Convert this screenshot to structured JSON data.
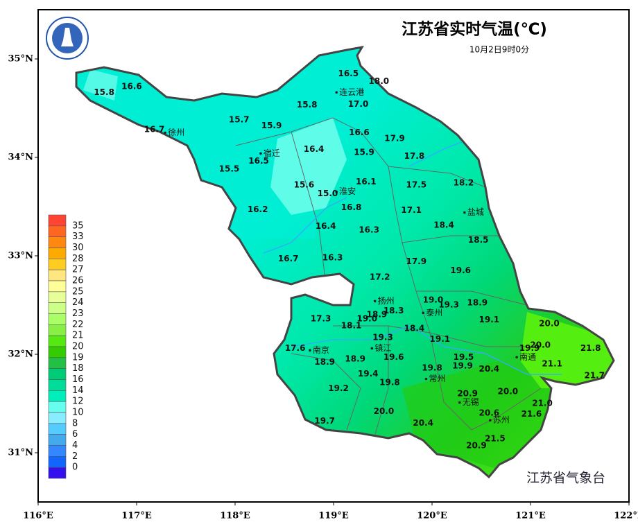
{
  "map": {
    "title": "江苏省实时气温(℃)",
    "subtitle": "10月2日9时0分",
    "footer": "江苏省气象台",
    "xlim": [
      116,
      122
    ],
    "ylim": [
      30.5,
      35.5
    ],
    "xticks": [
      {
        "value": 116,
        "label": "116°E"
      },
      {
        "value": 117,
        "label": "117°E"
      },
      {
        "value": 118,
        "label": "118°E"
      },
      {
        "value": 119,
        "label": "119°E"
      },
      {
        "value": 120,
        "label": "120°E"
      },
      {
        "value": 121,
        "label": "121°E"
      },
      {
        "value": 122,
        "label": "122°E"
      }
    ],
    "yticks": [
      {
        "value": 31,
        "label": "31°N"
      },
      {
        "value": 32,
        "label": "32°N"
      },
      {
        "value": 33,
        "label": "33°N"
      },
      {
        "value": 34,
        "label": "34°N"
      },
      {
        "value": 35,
        "label": "35°N"
      }
    ],
    "legend": {
      "levels": [
        35,
        33,
        30,
        28,
        27,
        26,
        25,
        24,
        23,
        22,
        21,
        20,
        19,
        18,
        16,
        14,
        12,
        10,
        8,
        6,
        4,
        2,
        0
      ],
      "colors": [
        "#ff4433",
        "#ff6622",
        "#ff8811",
        "#ffaa00",
        "#ffcc22",
        "#ffe680",
        "#ffff99",
        "#e6ff99",
        "#ccff88",
        "#aaff66",
        "#88f044",
        "#55e811",
        "#33cc00",
        "#22c044",
        "#00cc77",
        "#00dd99",
        "#00eebb",
        "#66ffee",
        "#88eeff",
        "#55ccff",
        "#44aaee",
        "#3388ff",
        "#1166ff",
        "#3311ee"
      ]
    },
    "cities": [
      {
        "name": "连云港",
        "lon": 119.03,
        "lat": 34.66
      },
      {
        "name": "徐州",
        "lon": 117.29,
        "lat": 34.25
      },
      {
        "name": "宿迁",
        "lon": 118.26,
        "lat": 34.04
      },
      {
        "name": "淮安",
        "lon": 119.03,
        "lat": 33.65
      },
      {
        "name": "盐城",
        "lon": 120.33,
        "lat": 33.44
      },
      {
        "name": "扬州",
        "lon": 119.42,
        "lat": 32.54
      },
      {
        "name": "泰州",
        "lon": 119.91,
        "lat": 32.42
      },
      {
        "name": "南京",
        "lon": 118.76,
        "lat": 32.04
      },
      {
        "name": "镇江",
        "lon": 119.39,
        "lat": 32.06
      },
      {
        "name": "南通",
        "lon": 120.86,
        "lat": 31.97
      },
      {
        "name": "常州",
        "lon": 119.94,
        "lat": 31.75
      },
      {
        "name": "无锡",
        "lon": 120.28,
        "lat": 31.51
      },
      {
        "name": "苏州",
        "lon": 120.59,
        "lat": 31.33
      }
    ],
    "stations": [
      {
        "text": "16.5",
        "lon": 119.15,
        "lat": 34.85
      },
      {
        "text": "18.0",
        "lon": 119.46,
        "lat": 34.77
      },
      {
        "text": "15.8",
        "lon": 116.67,
        "lat": 34.66
      },
      {
        "text": "16.6",
        "lon": 116.95,
        "lat": 34.72
      },
      {
        "text": "17.0",
        "lon": 119.25,
        "lat": 34.54
      },
      {
        "text": "15.8",
        "lon": 118.73,
        "lat": 34.53
      },
      {
        "text": "15.7",
        "lon": 118.04,
        "lat": 34.38
      },
      {
        "text": "15.9",
        "lon": 118.37,
        "lat": 34.32
      },
      {
        "text": "16.7",
        "lon": 117.18,
        "lat": 34.28
      },
      {
        "text": "16.6",
        "lon": 119.26,
        "lat": 34.25
      },
      {
        "text": "17.9",
        "lon": 119.62,
        "lat": 34.19
      },
      {
        "text": "16.4",
        "lon": 118.8,
        "lat": 34.08
      },
      {
        "text": "15.9",
        "lon": 119.31,
        "lat": 34.05
      },
      {
        "text": "16.5",
        "lon": 118.24,
        "lat": 33.96
      },
      {
        "text": "17.8",
        "lon": 119.82,
        "lat": 34.01
      },
      {
        "text": "15.5",
        "lon": 117.94,
        "lat": 33.88
      },
      {
        "text": "16.1",
        "lon": 119.33,
        "lat": 33.75
      },
      {
        "text": "17.5",
        "lon": 119.84,
        "lat": 33.72
      },
      {
        "text": "18.2",
        "lon": 120.32,
        "lat": 33.74
      },
      {
        "text": "15.6",
        "lon": 118.7,
        "lat": 33.72
      },
      {
        "text": "15.0",
        "lon": 118.94,
        "lat": 33.63
      },
      {
        "text": "16.8",
        "lon": 119.18,
        "lat": 33.49
      },
      {
        "text": "17.1",
        "lon": 119.79,
        "lat": 33.46
      },
      {
        "text": "16.2",
        "lon": 118.23,
        "lat": 33.47
      },
      {
        "text": "16.4",
        "lon": 118.92,
        "lat": 33.3
      },
      {
        "text": "18.4",
        "lon": 120.12,
        "lat": 33.31
      },
      {
        "text": "16.3",
        "lon": 119.36,
        "lat": 33.26
      },
      {
        "text": "18.5",
        "lon": 120.47,
        "lat": 33.16
      },
      {
        "text": "16.7",
        "lon": 118.54,
        "lat": 32.97
      },
      {
        "text": "16.3",
        "lon": 118.99,
        "lat": 32.98
      },
      {
        "text": "17.9",
        "lon": 119.84,
        "lat": 32.94
      },
      {
        "text": "19.6",
        "lon": 120.29,
        "lat": 32.85
      },
      {
        "text": "17.2",
        "lon": 119.47,
        "lat": 32.78
      },
      {
        "text": "19.0",
        "lon": 120.01,
        "lat": 32.55
      },
      {
        "text": "19.3",
        "lon": 120.17,
        "lat": 32.5
      },
      {
        "text": "18.9",
        "lon": 120.46,
        "lat": 32.52
      },
      {
        "text": "18.3",
        "lon": 119.61,
        "lat": 32.44
      },
      {
        "text": "18.9",
        "lon": 119.44,
        "lat": 32.4
      },
      {
        "text": "19.0",
        "lon": 119.34,
        "lat": 32.36
      },
      {
        "text": "17.3",
        "lon": 118.87,
        "lat": 32.36
      },
      {
        "text": "19.1",
        "lon": 120.58,
        "lat": 32.35
      },
      {
        "text": "18.1",
        "lon": 119.18,
        "lat": 32.29
      },
      {
        "text": "18.4",
        "lon": 119.82,
        "lat": 32.26
      },
      {
        "text": "20.0",
        "lon": 121.19,
        "lat": 32.31
      },
      {
        "text": "19.3",
        "lon": 119.5,
        "lat": 32.17
      },
      {
        "text": "19.1",
        "lon": 120.08,
        "lat": 32.15
      },
      {
        "text": "17.6",
        "lon": 118.61,
        "lat": 32.06
      },
      {
        "text": "19.9",
        "lon": 120.99,
        "lat": 32.06
      },
      {
        "text": "20.0",
        "lon": 121.1,
        "lat": 32.09
      },
      {
        "text": "21.8",
        "lon": 121.61,
        "lat": 32.06
      },
      {
        "text": "19.6",
        "lon": 119.61,
        "lat": 31.97
      },
      {
        "text": "19.5",
        "lon": 120.32,
        "lat": 31.97
      },
      {
        "text": "18.9",
        "lon": 118.91,
        "lat": 31.92
      },
      {
        "text": "18.9",
        "lon": 119.22,
        "lat": 31.95
      },
      {
        "text": "21.1",
        "lon": 121.22,
        "lat": 31.9
      },
      {
        "text": "19.8",
        "lon": 120.0,
        "lat": 31.86
      },
      {
        "text": "19.9",
        "lon": 120.31,
        "lat": 31.88
      },
      {
        "text": "20.4",
        "lon": 120.58,
        "lat": 31.85
      },
      {
        "text": "19.4",
        "lon": 119.35,
        "lat": 31.8
      },
      {
        "text": "21.7",
        "lon": 121.65,
        "lat": 31.78
      },
      {
        "text": "19.8",
        "lon": 119.57,
        "lat": 31.71
      },
      {
        "text": "19.2",
        "lon": 119.05,
        "lat": 31.65
      },
      {
        "text": "20.9",
        "lon": 120.36,
        "lat": 31.6
      },
      {
        "text": "20.0",
        "lon": 120.77,
        "lat": 31.62
      },
      {
        "text": "21.0",
        "lon": 121.12,
        "lat": 31.5
      },
      {
        "text": "20.0",
        "lon": 119.51,
        "lat": 31.42
      },
      {
        "text": "20.6",
        "lon": 120.58,
        "lat": 31.4
      },
      {
        "text": "21.6",
        "lon": 121.01,
        "lat": 31.39
      },
      {
        "text": "19.7",
        "lon": 118.91,
        "lat": 31.32
      },
      {
        "text": "20.4",
        "lon": 119.91,
        "lat": 31.3
      },
      {
        "text": "21.5",
        "lon": 120.64,
        "lat": 31.14
      },
      {
        "text": "20.9",
        "lon": 120.45,
        "lat": 31.07
      }
    ]
  }
}
